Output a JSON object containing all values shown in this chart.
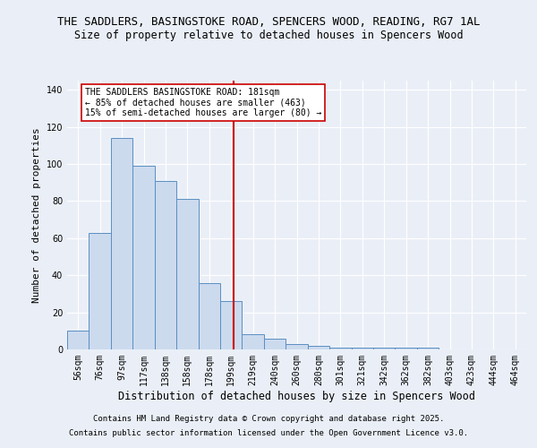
{
  "title": "THE SADDLERS, BASINGSTOKE ROAD, SPENCERS WOOD, READING, RG7 1AL",
  "subtitle": "Size of property relative to detached houses in Spencers Wood",
  "xlabel": "Distribution of detached houses by size in Spencers Wood",
  "ylabel": "Number of detached properties",
  "bin_labels": [
    "56sqm",
    "76sqm",
    "97sqm",
    "117sqm",
    "138sqm",
    "158sqm",
    "178sqm",
    "199sqm",
    "219sqm",
    "240sqm",
    "260sqm",
    "280sqm",
    "301sqm",
    "321sqm",
    "342sqm",
    "362sqm",
    "382sqm",
    "403sqm",
    "423sqm",
    "444sqm",
    "464sqm"
  ],
  "bar_heights": [
    10,
    63,
    114,
    99,
    91,
    81,
    36,
    26,
    8,
    6,
    3,
    2,
    1,
    1,
    1,
    1,
    1,
    0,
    0,
    0,
    0
  ],
  "bar_color": "#ccdaee",
  "bar_edge_color": "#5a8fc2",
  "plot_bg_color": "#eaeff7",
  "fig_bg_color": "#eaeff7",
  "grid_color": "#ffffff",
  "red_line_x": 7.12,
  "annotation_text": "THE SADDLERS BASINGSTOKE ROAD: 181sqm\n← 85% of detached houses are smaller (463)\n15% of semi-detached houses are larger (80) →",
  "annotation_box_color": "#ffffff",
  "annotation_box_edge": "#cc0000",
  "ylim": [
    0,
    145
  ],
  "yticks": [
    0,
    20,
    40,
    60,
    80,
    100,
    120,
    140
  ],
  "footer1": "Contains HM Land Registry data © Crown copyright and database right 2025.",
  "footer2": "Contains public sector information licensed under the Open Government Licence v3.0.",
  "title_fontsize": 9,
  "subtitle_fontsize": 8.5,
  "ylabel_fontsize": 8,
  "xlabel_fontsize": 8.5,
  "tick_fontsize": 7,
  "annot_fontsize": 7,
  "footer_fontsize": 6.5
}
